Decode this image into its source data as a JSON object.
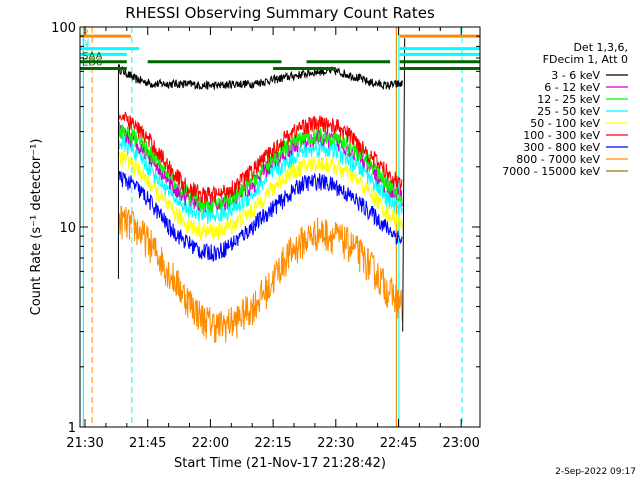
{
  "chart_data": {
    "type": "line",
    "title": "RHESSI Observing Summary Count Rates",
    "xlabel": "Start Time (21-Nov-17 21:28:42)",
    "ylabel": "Count Rate (s⁻¹ detector⁻¹)",
    "yscale": "log",
    "ylim": [
      1,
      100
    ],
    "xlim_minutes": [
      -1.2,
      94.5
    ],
    "x_ticks": [
      {
        "label": "21:30",
        "minute": 0
      },
      {
        "label": "21:45",
        "minute": 15
      },
      {
        "label": "22:00",
        "minute": 30
      },
      {
        "label": "22:15",
        "minute": 45
      },
      {
        "label": "22:30",
        "minute": 60
      },
      {
        "label": "22:45",
        "minute": 75
      },
      {
        "label": "23:00",
        "minute": 90
      }
    ],
    "y_ticks": [
      {
        "label": "1",
        "value": 1
      },
      {
        "label": "10",
        "value": 10
      },
      {
        "label": "100",
        "value": 100
      }
    ],
    "legend_header": [
      "Det 1,3,6,",
      "FDecim 1, Att 0"
    ],
    "x_minutes": [
      8,
      12,
      16,
      20,
      24,
      28,
      32,
      36,
      40,
      44,
      48,
      52,
      56,
      60,
      64,
      68,
      72,
      76
    ],
    "series": [
      {
        "name": "3 - 6 keV",
        "color": "#000000",
        "values": [
          62,
          55,
          52,
          52,
          52,
          51,
          51,
          52,
          52,
          54,
          56,
          58,
          60,
          60,
          57,
          53,
          51,
          52
        ]
      },
      {
        "name": "6 - 12 keV",
        "color": "#cc00cc",
        "values": [
          30,
          27,
          22,
          17,
          14,
          13,
          13,
          14,
          16,
          20,
          24,
          27,
          28,
          27,
          24,
          20,
          16,
          14
        ]
      },
      {
        "name": "12 - 25 keV",
        "color": "#00ff00",
        "values": [
          31,
          28,
          23,
          18,
          15,
          13,
          13,
          14,
          17,
          21,
          25,
          28,
          29,
          28,
          25,
          21,
          17,
          14
        ]
      },
      {
        "name": "25 - 50 keV",
        "color": "#00ffff",
        "values": [
          27,
          24,
          19,
          15,
          12.5,
          11.5,
          11.5,
          12.5,
          14.5,
          18,
          21,
          24,
          25,
          24,
          21,
          18,
          14,
          12
        ]
      },
      {
        "name": "50 - 100 keV",
        "color": "#ffff00",
        "values": [
          23,
          20,
          16,
          12.5,
          10.5,
          9.5,
          9.5,
          10.5,
          12,
          15,
          18,
          20,
          21,
          20,
          18,
          15,
          12,
          10
        ]
      },
      {
        "name": "100 - 300 keV",
        "color": "#ff0000",
        "values": [
          36,
          32,
          26,
          20,
          16,
          14.5,
          14.5,
          16,
          19,
          23,
          28,
          32,
          33,
          32,
          28,
          23,
          19,
          16
        ]
      },
      {
        "name": "300 - 800 keV",
        "color": "#0000ff",
        "values": [
          18,
          16,
          13,
          10,
          8.5,
          7.5,
          7.5,
          8.5,
          10,
          12,
          14,
          16.5,
          17,
          16,
          14,
          12,
          10,
          8.5
        ]
      },
      {
        "name": "800 - 7000 keV",
        "color": "#ff8c00",
        "values": [
          11,
          10,
          8,
          6,
          4.5,
          3.5,
          3.2,
          3.4,
          4,
          5,
          7,
          8.5,
          9.5,
          9,
          8,
          6.5,
          5,
          4
        ]
      },
      {
        "name": "7000 - 15000 keV",
        "color": "#9a7a00",
        "values": []
      }
    ],
    "status_flags": [
      {
        "label": "S",
        "color": "#ff8c00",
        "value": 90,
        "start": 0,
        "end": 11
      },
      {
        "label": "N",
        "color": "#00ffff",
        "value": 78,
        "start": -1,
        "end": 13
      },
      {
        "label": "R",
        "color": "#00ffff",
        "value": 73,
        "start": -1,
        "end": 10
      },
      {
        "label": "SAA",
        "color": "#006400",
        "value": 67,
        "start": -1,
        "end": 10
      },
      {
        "label": "ED6",
        "color": "#006400",
        "value": 62,
        "start": -1,
        "end": 10
      }
    ],
    "night_gaps": [
      {
        "start": 1.7,
        "end": 74.5
      },
      {
        "start": 11.2,
        "end": 90.2
      }
    ],
    "vertical_markers": [
      {
        "minute": -0.4,
        "color": "#00ffff",
        "style": "solid"
      },
      {
        "minute": 75.1,
        "color": "#00ffff",
        "style": "solid"
      },
      {
        "minute": 74.5,
        "color": "#ff8c00",
        "style": "solid"
      }
    ],
    "timestamp": "2-Sep-2022 09:17"
  }
}
